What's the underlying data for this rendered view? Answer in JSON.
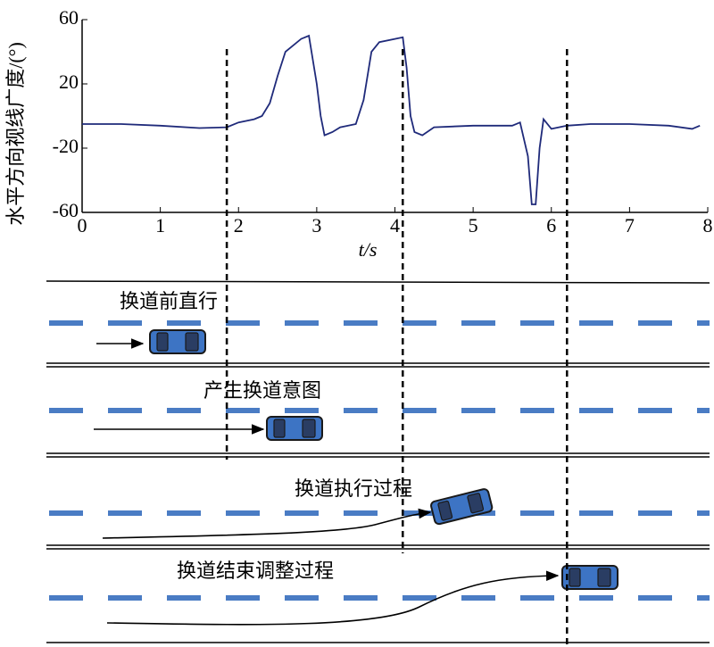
{
  "chart_data": {
    "type": "line",
    "y_label": "水平方向视线广度/(°)",
    "x_label": "t/s",
    "x": [
      0,
      0.5,
      1,
      1.5,
      1.85,
      2.0,
      2.2,
      2.3,
      2.4,
      2.5,
      2.6,
      2.8,
      2.9,
      3.0,
      3.05,
      3.1,
      3.2,
      3.3,
      3.5,
      3.6,
      3.7,
      3.8,
      4.0,
      4.1,
      4.15,
      4.2,
      4.25,
      4.35,
      4.5,
      5.0,
      5.5,
      5.6,
      5.7,
      5.75,
      5.8,
      5.85,
      5.9,
      6.0,
      6.2,
      6.5,
      7.0,
      7.5,
      7.8,
      7.9
    ],
    "values": [
      -5,
      -5,
      -6,
      -7.5,
      -7,
      -4,
      -2,
      0,
      8,
      25,
      40,
      48,
      50,
      20,
      0,
      -12,
      -10,
      -7,
      -5,
      10,
      40,
      46,
      48,
      49,
      30,
      0,
      -10,
      -12,
      -7,
      -6,
      -6,
      -4,
      -25,
      -55,
      -55,
      -20,
      -2,
      -8,
      -6,
      -5,
      -5,
      -6,
      -8,
      -6
    ],
    "color": "#1f2a7a",
    "xlim": [
      0,
      8
    ],
    "xticks": [
      0,
      1,
      2,
      3,
      4,
      5,
      6,
      7,
      8
    ],
    "ylim": [
      -60,
      60
    ],
    "yticks": [
      -60,
      -20,
      20,
      60
    ],
    "stage_boundaries": [
      1.85,
      4.1,
      6.2
    ]
  },
  "diagram": {
    "stages": [
      "换道前直行",
      "产生换道意图",
      "换道执行过程",
      "换道结束调整过程"
    ]
  }
}
